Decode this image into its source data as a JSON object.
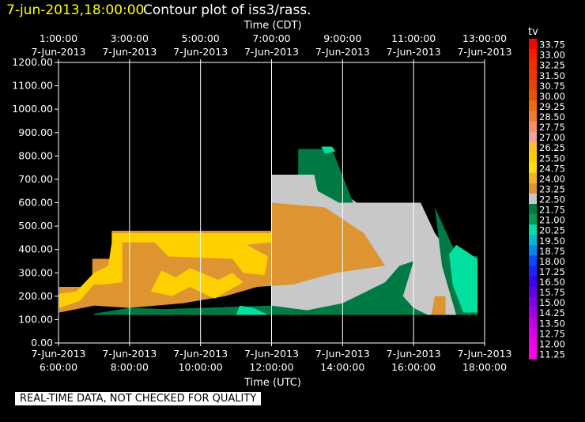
{
  "header": {
    "timestamp": "7-jun-2013,18:00:00",
    "title": "Contour plot of iss3/rass."
  },
  "disclaimer": "REAL-TIME DATA, NOT CHECKED FOR QUALITY",
  "colors": {
    "background": "#000000",
    "foreground": "#ffffff",
    "timestamp": "#ffff00"
  },
  "chart_data": {
    "type": "heatmap",
    "title": "Contour plot of iss3/rass.",
    "top_axis": {
      "label": "Time (CDT)",
      "ticks": [
        {
          "x": 6,
          "time": "1:00:00",
          "date": "7-Jun-2013"
        },
        {
          "x": 8,
          "time": "3:00:00",
          "date": "7-Jun-2013"
        },
        {
          "x": 10,
          "time": "5:00:00",
          "date": "7-Jun-2013"
        },
        {
          "x": 12,
          "time": "7:00:00",
          "date": "7-Jun-2013"
        },
        {
          "x": 14,
          "time": "9:00:00",
          "date": "7-Jun-2013"
        },
        {
          "x": 16,
          "time": "11:00:00",
          "date": "7-Jun-2013"
        },
        {
          "x": 18,
          "time": "13:00:00",
          "date": "7-Jun-2013"
        }
      ]
    },
    "bottom_axis": {
      "label": "Time (UTC)",
      "ticks": [
        {
          "x": 6,
          "date": "7-Jun-2013",
          "time": "6:00:00"
        },
        {
          "x": 8,
          "date": "7-Jun-2013",
          "time": "8:00:00"
        },
        {
          "x": 10,
          "date": "7-Jun-2013",
          "time": "10:00:00"
        },
        {
          "x": 12,
          "date": "7-Jun-2013",
          "time": "12:00:00"
        },
        {
          "x": 14,
          "date": "7-Jun-2013",
          "time": "14:00:00"
        },
        {
          "x": 16,
          "date": "7-Jun-2013",
          "time": "16:00:00"
        },
        {
          "x": 18,
          "date": "7-Jun-2013",
          "time": "18:00:00"
        }
      ]
    },
    "xlim": [
      6,
      18
    ],
    "ylim": [
      0,
      1200
    ],
    "y_ticks": [
      "0.00",
      "100.00",
      "200.00",
      "300.00",
      "400.00",
      "500.00",
      "600.00",
      "700.00",
      "800.00",
      "900.00",
      "1000.00",
      "1100.00",
      "1200.00"
    ],
    "grid": "vertical lines",
    "legend": {
      "title": "tv",
      "position": "right",
      "levels": [
        {
          "label": "33.75",
          "color": "#ff0000"
        },
        {
          "label": "33.00",
          "color": "#ff1a00"
        },
        {
          "label": "32.25",
          "color": "#f42a00"
        },
        {
          "label": "31.50",
          "color": "#ea3800"
        },
        {
          "label": "30.75",
          "color": "#e64400"
        },
        {
          "label": "30.00",
          "color": "#e85500"
        },
        {
          "label": "29.25",
          "color": "#ec6a10"
        },
        {
          "label": "28.50",
          "color": "#f07e30"
        },
        {
          "label": "27.75",
          "color": "#f49070"
        },
        {
          "label": "27.00",
          "color": "#f0a0a0"
        },
        {
          "label": "26.25",
          "color": "#ffbf2a"
        },
        {
          "label": "25.50",
          "color": "#ffd000"
        },
        {
          "label": "24.75",
          "color": "#ffdc14"
        },
        {
          "label": "24.00",
          "color": "#f0b427"
        },
        {
          "label": "23.25",
          "color": "#de9531"
        },
        {
          "label": "22.50",
          "color": "#c8c8c8"
        },
        {
          "label": "21.75",
          "color": "#007a45"
        },
        {
          "label": "21.00",
          "color": "#009a50"
        },
        {
          "label": "20.25",
          "color": "#00e0a0"
        },
        {
          "label": "19.50",
          "color": "#00b8d8"
        },
        {
          "label": "18.75",
          "color": "#0088f0"
        },
        {
          "label": "18.00",
          "color": "#0050ff"
        },
        {
          "label": "17.25",
          "color": "#2020ff"
        },
        {
          "label": "16.50",
          "color": "#4000f0"
        },
        {
          "label": "15.75",
          "color": "#6000e8"
        },
        {
          "label": "15.00",
          "color": "#8000e8"
        },
        {
          "label": "14.25",
          "color": "#a000e8"
        },
        {
          "label": "13.50",
          "color": "#c000e8"
        },
        {
          "label": "12.75",
          "color": "#dc00e8"
        },
        {
          "label": "12.00",
          "color": "#ee00e8"
        },
        {
          "label": "11.25",
          "color": "#ff00e8"
        }
      ]
    },
    "regions": [
      {
        "name": "gray",
        "color": "#c8c8c8",
        "points": [
          [
            12,
            720
          ],
          [
            13.33,
            720
          ],
          [
            14.4,
            600
          ],
          [
            16.2,
            600
          ],
          [
            16.6,
            470
          ],
          [
            17.3,
            320
          ],
          [
            17.8,
            120
          ],
          [
            12,
            120
          ]
        ]
      },
      {
        "name": "dark-green-upper",
        "color": "#007a45",
        "points": [
          [
            12.75,
            720
          ],
          [
            12.75,
            830
          ],
          [
            13.7,
            830
          ],
          [
            14.3,
            600
          ],
          [
            13.9,
            600
          ],
          [
            13.3,
            650
          ],
          [
            13.2,
            720
          ]
        ]
      },
      {
        "name": "bright-green-top",
        "color": "#00e0a0",
        "points": [
          [
            13.4,
            840
          ],
          [
            13.7,
            840
          ],
          [
            13.8,
            820
          ],
          [
            13.5,
            810
          ]
        ]
      },
      {
        "name": "orange-main",
        "color": "#de9531",
        "points": [
          [
            6.02,
            240
          ],
          [
            6.95,
            240
          ],
          [
            6.95,
            360
          ],
          [
            7.5,
            360
          ],
          [
            7.5,
            480
          ],
          [
            12,
            480
          ],
          [
            12,
            600
          ],
          [
            13.5,
            580
          ],
          [
            14.6,
            470
          ],
          [
            15.2,
            330
          ],
          [
            13.8,
            300
          ],
          [
            12.6,
            250
          ],
          [
            11.6,
            240
          ],
          [
            10.7,
            200
          ],
          [
            9.5,
            170
          ],
          [
            8.0,
            150
          ],
          [
            7.0,
            160
          ],
          [
            6.02,
            130
          ]
        ]
      },
      {
        "name": "yellow-upper",
        "color": "#ffd000",
        "points": [
          [
            7.5,
            430
          ],
          [
            8.7,
            430
          ],
          [
            9.1,
            370
          ],
          [
            10.9,
            360
          ],
          [
            11.2,
            300
          ],
          [
            11.8,
            290
          ],
          [
            11.9,
            370
          ],
          [
            11.3,
            420
          ],
          [
            12.0,
            430
          ],
          [
            12.0,
            470
          ],
          [
            7.5,
            470
          ]
        ]
      },
      {
        "name": "yellow-left",
        "color": "#ffd000",
        "points": [
          [
            6.02,
            210
          ],
          [
            6.5,
            220
          ],
          [
            7.0,
            300
          ],
          [
            7.4,
            330
          ],
          [
            7.5,
            430
          ],
          [
            7.8,
            430
          ],
          [
            7.8,
            260
          ],
          [
            7.3,
            250
          ],
          [
            7.0,
            250
          ],
          [
            6.6,
            180
          ],
          [
            6.02,
            150
          ]
        ]
      },
      {
        "name": "yellow-mid",
        "color": "#ffd000",
        "points": [
          [
            8.6,
            220
          ],
          [
            8.9,
            310
          ],
          [
            9.3,
            280
          ],
          [
            9.7,
            320
          ],
          [
            10.5,
            270
          ],
          [
            10.9,
            300
          ],
          [
            11.2,
            260
          ],
          [
            10.4,
            190
          ],
          [
            9.7,
            240
          ],
          [
            9.2,
            200
          ]
        ]
      },
      {
        "name": "dark-green-lower",
        "color": "#007a45",
        "points": [
          [
            7.0,
            125
          ],
          [
            8.0,
            150
          ],
          [
            9.0,
            145
          ],
          [
            10.0,
            150
          ],
          [
            11.0,
            155
          ],
          [
            12.0,
            160
          ],
          [
            13.0,
            140
          ],
          [
            14.0,
            170
          ],
          [
            15.2,
            260
          ],
          [
            15.6,
            330
          ],
          [
            16.0,
            350
          ],
          [
            15.7,
            200
          ],
          [
            16.0,
            150
          ],
          [
            16.4,
            120
          ],
          [
            7.0,
            120
          ]
        ]
      },
      {
        "name": "bright-green-lower",
        "color": "#00e0a0",
        "points": [
          [
            11.1,
            160
          ],
          [
            11.5,
            150
          ],
          [
            11.9,
            120
          ],
          [
            11.0,
            120
          ]
        ]
      },
      {
        "name": "orange-small",
        "color": "#de9531",
        "points": [
          [
            16.5,
            120
          ],
          [
            16.9,
            120
          ],
          [
            16.9,
            200
          ],
          [
            16.6,
            200
          ]
        ]
      },
      {
        "name": "green-right",
        "color": "#007a45",
        "points": [
          [
            16.6,
            580
          ],
          [
            17.2,
            380
          ],
          [
            17.8,
            370
          ],
          [
            17.8,
            120
          ],
          [
            17.2,
            120
          ],
          [
            16.8,
            330
          ]
        ]
      },
      {
        "name": "bright-green-right",
        "color": "#00e0a0",
        "points": [
          [
            17.0,
            380
          ],
          [
            17.2,
            420
          ],
          [
            17.8,
            360
          ],
          [
            17.8,
            130
          ],
          [
            17.4,
            130
          ],
          [
            17.1,
            250
          ]
        ]
      }
    ]
  }
}
